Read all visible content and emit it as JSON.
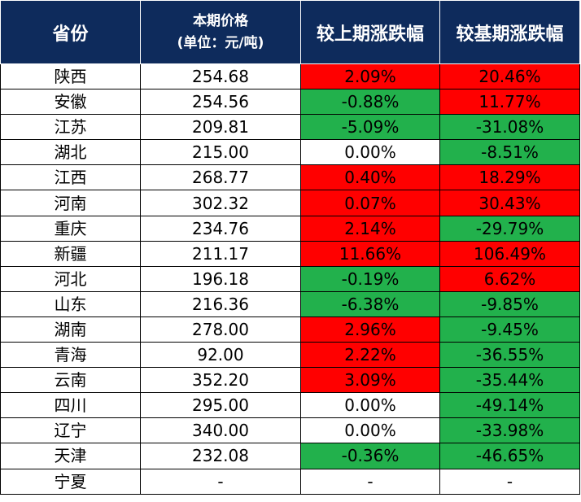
{
  "header": {
    "province": "省份",
    "price_line1": "本期价格",
    "price_line2": "(单位：元/吨)",
    "prev_change": "较上期涨跌幅",
    "base_change": "较基期涨跌幅"
  },
  "colors": {
    "up": "#ff0000",
    "down": "#22b14c",
    "flat": "#ffffff",
    "header": "#0e2b5c"
  },
  "rows": [
    {
      "province": "陕西",
      "price": "254.68",
      "prev": "2.09%",
      "prev_c": "red",
      "base": "20.46%",
      "base_c": "red"
    },
    {
      "province": "安徽",
      "price": "254.56",
      "prev": "-0.88%",
      "prev_c": "green",
      "base": "11.77%",
      "base_c": "red"
    },
    {
      "province": "江苏",
      "price": "209.81",
      "prev": "-5.09%",
      "prev_c": "green",
      "base": "-31.08%",
      "base_c": "green"
    },
    {
      "province": "湖北",
      "price": "215.00",
      "prev": "0.00%",
      "prev_c": "white",
      "base": "-8.51%",
      "base_c": "green"
    },
    {
      "province": "江西",
      "price": "268.77",
      "prev": "0.40%",
      "prev_c": "red",
      "base": "18.29%",
      "base_c": "red"
    },
    {
      "province": "河南",
      "price": "302.32",
      "prev": "0.07%",
      "prev_c": "red",
      "base": "30.43%",
      "base_c": "red"
    },
    {
      "province": "重庆",
      "price": "234.76",
      "prev": "2.14%",
      "prev_c": "red",
      "base": "-29.79%",
      "base_c": "green"
    },
    {
      "province": "新疆",
      "price": "211.17",
      "prev": "11.66%",
      "prev_c": "red",
      "base": "106.49%",
      "base_c": "red"
    },
    {
      "province": "河北",
      "price": "196.18",
      "prev": "-0.19%",
      "prev_c": "green",
      "base": "6.62%",
      "base_c": "red"
    },
    {
      "province": "山东",
      "price": "216.36",
      "prev": "-6.38%",
      "prev_c": "green",
      "base": "-9.85%",
      "base_c": "green"
    },
    {
      "province": "湖南",
      "price": "278.00",
      "prev": "2.96%",
      "prev_c": "red",
      "base": "-9.45%",
      "base_c": "green"
    },
    {
      "province": "青海",
      "price": "92.00",
      "prev": "2.22%",
      "prev_c": "red",
      "base": "-36.55%",
      "base_c": "green"
    },
    {
      "province": "云南",
      "price": "352.20",
      "prev": "3.09%",
      "prev_c": "red",
      "base": "-35.44%",
      "base_c": "green"
    },
    {
      "province": "四川",
      "price": "295.00",
      "prev": "0.00%",
      "prev_c": "white",
      "base": "-49.14%",
      "base_c": "green"
    },
    {
      "province": "辽宁",
      "price": "340.00",
      "prev": "0.00%",
      "prev_c": "white",
      "base": "-33.98%",
      "base_c": "green"
    },
    {
      "province": "天津",
      "price": "232.08",
      "prev": "-0.36%",
      "prev_c": "green",
      "base": "-46.65%",
      "base_c": "green"
    },
    {
      "province": "宁夏",
      "price": "-",
      "prev": "-",
      "prev_c": "white",
      "base": "-",
      "base_c": "white"
    }
  ]
}
